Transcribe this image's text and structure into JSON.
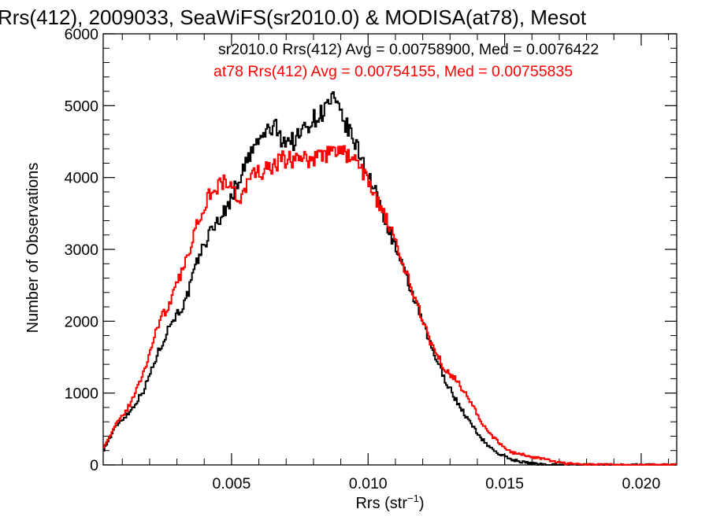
{
  "chart_data": {
    "type": "line",
    "title": "Rrs(412), 2009033, SeaWiFS(sr2010.0) & MODISA(at78), Mesot",
    "xlabel": "Rrs (str",
    "xlabel_sup": "−1",
    "xlabel_close": ")",
    "ylabel": "Number of Observations",
    "xlim": [
      0.0003,
      0.0213
    ],
    "ylim": [
      0,
      6000
    ],
    "x_ticks": [
      {
        "value": 0.005,
        "label": "0.005"
      },
      {
        "value": 0.01,
        "label": "0.010"
      },
      {
        "value": 0.015,
        "label": "0.015"
      },
      {
        "value": 0.02,
        "label": "0.020"
      }
    ],
    "y_ticks": [
      {
        "value": 0,
        "label": "0"
      },
      {
        "value": 1000,
        "label": "1000"
      },
      {
        "value": 2000,
        "label": "2000"
      },
      {
        "value": 3000,
        "label": "3000"
      },
      {
        "value": 4000,
        "label": "4000"
      },
      {
        "value": 5000,
        "label": "5000"
      },
      {
        "value": 6000,
        "label": "6000"
      }
    ],
    "annotations": [
      {
        "text": "sr2010.0 Rrs(412) Avg = 0.00758900, Med = 0.0076422",
        "color": "#000000"
      },
      {
        "text": "at78 Rrs(412) Avg = 0.00754155, Med = 0.00755835",
        "color": "#ff0000"
      }
    ],
    "grid": false,
    "x": [
      0.0003,
      0.0008,
      0.0013,
      0.0018,
      0.0023,
      0.0028,
      0.0033,
      0.0038,
      0.0043,
      0.0048,
      0.0053,
      0.0058,
      0.0063,
      0.0066,
      0.0068,
      0.0073,
      0.0078,
      0.0083,
      0.0087,
      0.0088,
      0.0093,
      0.0098,
      0.0103,
      0.0108,
      0.0113,
      0.0118,
      0.0123,
      0.0128,
      0.0133,
      0.0138,
      0.0143,
      0.0148,
      0.0153,
      0.0158,
      0.0163,
      0.0168,
      0.0173,
      0.0178,
      0.0183,
      0.0188,
      0.0193,
      0.0198,
      0.0203,
      0.0208,
      0.0213
    ],
    "series": [
      {
        "color": "#000000",
        "values": [
          200,
          560,
          750,
          1050,
          1550,
          2000,
          2250,
          2900,
          3300,
          3550,
          4000,
          4400,
          4650,
          4700,
          4550,
          4500,
          4750,
          4900,
          5100,
          5000,
          4650,
          4250,
          3750,
          3250,
          2700,
          2200,
          1650,
          1200,
          850,
          550,
          300,
          150,
          70,
          30,
          10,
          5,
          2,
          0,
          0,
          0,
          0,
          0,
          0,
          0,
          0
        ]
      },
      {
        "color": "#ff0000",
        "values": [
          250,
          570,
          850,
          1300,
          1950,
          2300,
          2800,
          3450,
          3850,
          3950,
          3700,
          4050,
          4100,
          4150,
          4250,
          4250,
          4250,
          4300,
          4350,
          4400,
          4300,
          4100,
          3700,
          3300,
          2750,
          2250,
          1700,
          1350,
          1150,
          850,
          500,
          300,
          170,
          130,
          90,
          50,
          20,
          10,
          5,
          3,
          0,
          0,
          0,
          0,
          0
        ]
      }
    ]
  }
}
